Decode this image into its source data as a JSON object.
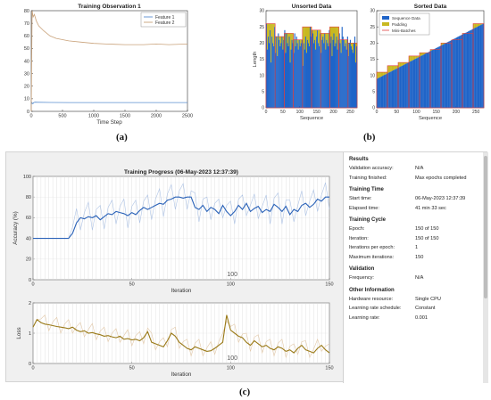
{
  "captions": {
    "a": "(a)",
    "b": "(b)",
    "c": "(c)"
  },
  "chart_data": [
    {
      "type": "line",
      "title": "Training Observation 1",
      "xlabel": "Time Step",
      "ylabel": "",
      "xlim": [
        0,
        2500
      ],
      "ylim": [
        0,
        80
      ],
      "xticks": [
        0,
        500,
        1000,
        1500,
        2000,
        2500
      ],
      "yticks": [
        0,
        10,
        20,
        30,
        40,
        50,
        60,
        70,
        80
      ],
      "legend_position": "top-right",
      "series": [
        {
          "name": "Feature 1",
          "color": "#5b8fd0",
          "x": [
            0,
            10,
            25,
            40,
            60,
            100,
            300,
            600,
            1000,
            1500,
            2000,
            2500
          ],
          "y": [
            5,
            7,
            6,
            7,
            7.3,
            7.2,
            7.1,
            7.0,
            7.0,
            7.0,
            7.0,
            7.0
          ]
        },
        {
          "name": "Feature 2",
          "color": "#c9a27a",
          "x": [
            0,
            15,
            30,
            50,
            80,
            120,
            200,
            300,
            400,
            600,
            800,
            1000,
            1200,
            1500,
            1800,
            2000,
            2200,
            2500
          ],
          "y": [
            0,
            80,
            75,
            77,
            72,
            68,
            64,
            60,
            58,
            56,
            55,
            54,
            53.5,
            53,
            53,
            53.5,
            53,
            53.5
          ]
        }
      ]
    },
    {
      "type": "bar",
      "title": "Unsorted Data",
      "xlabel": "Sequence",
      "ylabel": "Length",
      "xlim": [
        0,
        270
      ],
      "ylim": [
        0,
        30
      ],
      "xticks": [
        0,
        50,
        100,
        150,
        200,
        250
      ],
      "yticks": [
        0,
        5,
        10,
        15,
        20,
        25,
        30
      ],
      "mini_batch_edges": [
        0,
        27,
        54,
        81,
        108,
        135,
        162,
        189,
        216,
        243,
        270
      ],
      "mini_batch_max": [
        26,
        22,
        23,
        21,
        25,
        24,
        23,
        25,
        21,
        20
      ],
      "sequence_lengths": [
        26,
        18,
        22,
        20,
        24,
        14,
        22,
        20,
        19,
        25,
        17,
        22,
        16,
        23,
        21,
        19,
        20,
        22,
        18,
        21,
        24,
        17,
        23,
        20,
        19,
        22,
        14,
        18,
        21,
        20,
        17,
        23,
        19,
        22,
        20,
        18,
        21,
        19,
        20,
        21,
        13,
        20,
        18,
        22,
        17,
        21,
        20,
        19,
        25,
        22,
        24,
        23,
        20,
        21,
        18,
        22,
        24,
        20,
        19,
        23,
        17,
        21,
        22,
        20,
        23,
        18,
        21,
        20,
        19,
        24,
        20,
        22,
        16,
        21,
        23,
        19,
        20,
        22,
        18,
        21,
        23,
        20,
        17,
        25,
        22,
        21,
        19,
        20,
        18,
        22,
        16,
        20,
        21,
        19,
        18,
        17,
        20,
        22,
        14,
        19
      ],
      "legend": [
        "Sequence Data",
        "Padding",
        "Mini-Batches"
      ],
      "colors": {
        "sequence": "#1f64c8",
        "padding": "#c8b820",
        "minibatch": "#e04040"
      }
    },
    {
      "type": "bar",
      "title": "Sorted Data",
      "xlabel": "Sequence",
      "ylabel": "",
      "xlim": [
        0,
        270
      ],
      "ylim": [
        0,
        30
      ],
      "xticks": [
        0,
        50,
        100,
        150,
        200,
        250
      ],
      "yticks": [
        0,
        5,
        10,
        15,
        20,
        25,
        30
      ],
      "legend_position": "top-left",
      "mini_batch_edges": [
        0,
        27,
        54,
        81,
        108,
        135,
        162,
        189,
        216,
        243,
        270
      ],
      "mini_batch_max": [
        11,
        13,
        14,
        16,
        17,
        18,
        20,
        21,
        23,
        26
      ],
      "sorted_min": 9,
      "sorted_max": 26
    },
    {
      "type": "line",
      "title": "Training Progress (06-May-2023 12:37:39)",
      "xlabel": "Iteration",
      "ylabel": "Accuracy (%)",
      "xlim": [
        0,
        150
      ],
      "ylim": [
        0,
        100
      ],
      "xticks": [
        0,
        50,
        100,
        150
      ],
      "yticks": [
        0,
        20,
        40,
        60,
        80,
        100
      ],
      "annotation": "100",
      "series": [
        {
          "name": "Training accuracy (smoothed)",
          "color": "#2a62b8",
          "x": [
            0,
            5,
            10,
            15,
            18,
            20,
            22,
            24,
            26,
            28,
            30,
            32,
            34,
            36,
            38,
            40,
            42,
            44,
            46,
            48,
            50,
            52,
            54,
            56,
            58,
            60,
            62,
            64,
            66,
            68,
            70,
            72,
            74,
            76,
            78,
            80,
            82,
            84,
            86,
            88,
            90,
            92,
            94,
            96,
            98,
            100,
            102,
            104,
            106,
            108,
            110,
            112,
            114,
            116,
            118,
            120,
            122,
            124,
            126,
            128,
            130,
            132,
            134,
            136,
            138,
            140,
            142,
            144,
            146,
            148,
            150
          ],
          "y": [
            40,
            40,
            40,
            40,
            40,
            45,
            55,
            60,
            59,
            61,
            60,
            62,
            58,
            61,
            64,
            63,
            66,
            65,
            64,
            62,
            65,
            63,
            67,
            70,
            68,
            70,
            72,
            74,
            73,
            77,
            78,
            80,
            80,
            79,
            80,
            80,
            70,
            68,
            72,
            66,
            70,
            68,
            64,
            72,
            66,
            62,
            66,
            72,
            68,
            74,
            66,
            69,
            71,
            65,
            68,
            66,
            73,
            70,
            66,
            71,
            63,
            68,
            66,
            72,
            74,
            70,
            73,
            78,
            76,
            80,
            80
          ]
        }
      ]
    },
    {
      "type": "line",
      "title": "",
      "xlabel": "Iteration",
      "ylabel": "Loss",
      "xlim": [
        0,
        150
      ],
      "ylim": [
        0,
        2
      ],
      "xticks": [
        0,
        50,
        100,
        150
      ],
      "yticks": [
        0,
        1,
        2
      ],
      "annotation": "100",
      "series": [
        {
          "name": "Training loss (smoothed)",
          "color": "#9a7a18",
          "x": [
            0,
            2,
            4,
            6,
            8,
            10,
            12,
            14,
            16,
            18,
            20,
            22,
            24,
            26,
            28,
            30,
            32,
            34,
            36,
            38,
            40,
            42,
            44,
            46,
            48,
            50,
            52,
            54,
            56,
            58,
            60,
            62,
            64,
            66,
            68,
            70,
            72,
            74,
            76,
            78,
            80,
            82,
            84,
            86,
            88,
            90,
            92,
            94,
            96,
            98,
            100,
            102,
            104,
            106,
            108,
            110,
            112,
            114,
            116,
            118,
            120,
            122,
            124,
            126,
            128,
            130,
            132,
            134,
            136,
            138,
            140,
            142,
            144,
            146,
            148,
            150
          ],
          "y": [
            1.2,
            1.45,
            1.35,
            1.3,
            1.28,
            1.25,
            1.22,
            1.2,
            1.18,
            1.15,
            1.2,
            1.1,
            1.05,
            1.08,
            1.0,
            1.02,
            0.98,
            0.95,
            0.9,
            0.92,
            0.88,
            0.85,
            0.9,
            0.8,
            0.82,
            0.78,
            0.8,
            0.75,
            0.85,
            1.05,
            0.7,
            0.65,
            0.6,
            0.55,
            0.75,
            1.0,
            0.9,
            0.7,
            0.6,
            0.5,
            0.45,
            0.55,
            0.5,
            0.45,
            0.4,
            0.42,
            0.5,
            0.6,
            0.7,
            1.6,
            1.1,
            1.0,
            0.9,
            0.85,
            0.7,
            0.6,
            0.75,
            0.65,
            0.55,
            0.6,
            0.5,
            0.45,
            0.55,
            0.5,
            0.4,
            0.45,
            0.35,
            0.5,
            0.6,
            0.45,
            0.4,
            0.35,
            0.5,
            0.6,
            0.45,
            0.35
          ]
        }
      ]
    }
  ],
  "results": {
    "sections": [
      {
        "title": "Results",
        "rows": [
          {
            "k": "Validation accuracy:",
            "v": "N/A"
          },
          {
            "k": "Training finished:",
            "v": "Max epochs completed"
          }
        ]
      },
      {
        "title": "Training Time",
        "rows": [
          {
            "k": "Start time:",
            "v": "06-May-2023 12:37:39"
          },
          {
            "k": "Elapsed time:",
            "v": "41 min 33 sec"
          }
        ]
      },
      {
        "title": "Training Cycle",
        "rows": [
          {
            "k": "Epoch:",
            "v": "150 of 150"
          },
          {
            "k": "Iteration:",
            "v": "150 of 150"
          },
          {
            "k": "Iterations per epoch:",
            "v": "1"
          },
          {
            "k": "Maximum iterations:",
            "v": "150"
          }
        ]
      },
      {
        "title": "Validation",
        "rows": [
          {
            "k": "Frequency:",
            "v": "N/A"
          }
        ]
      },
      {
        "title": "Other Information",
        "rows": [
          {
            "k": "Hardware resource:",
            "v": "Single CPU"
          },
          {
            "k": "Learning rate schedule:",
            "v": "Constant"
          },
          {
            "k": "Learning rate:",
            "v": "0.001"
          }
        ]
      }
    ]
  }
}
